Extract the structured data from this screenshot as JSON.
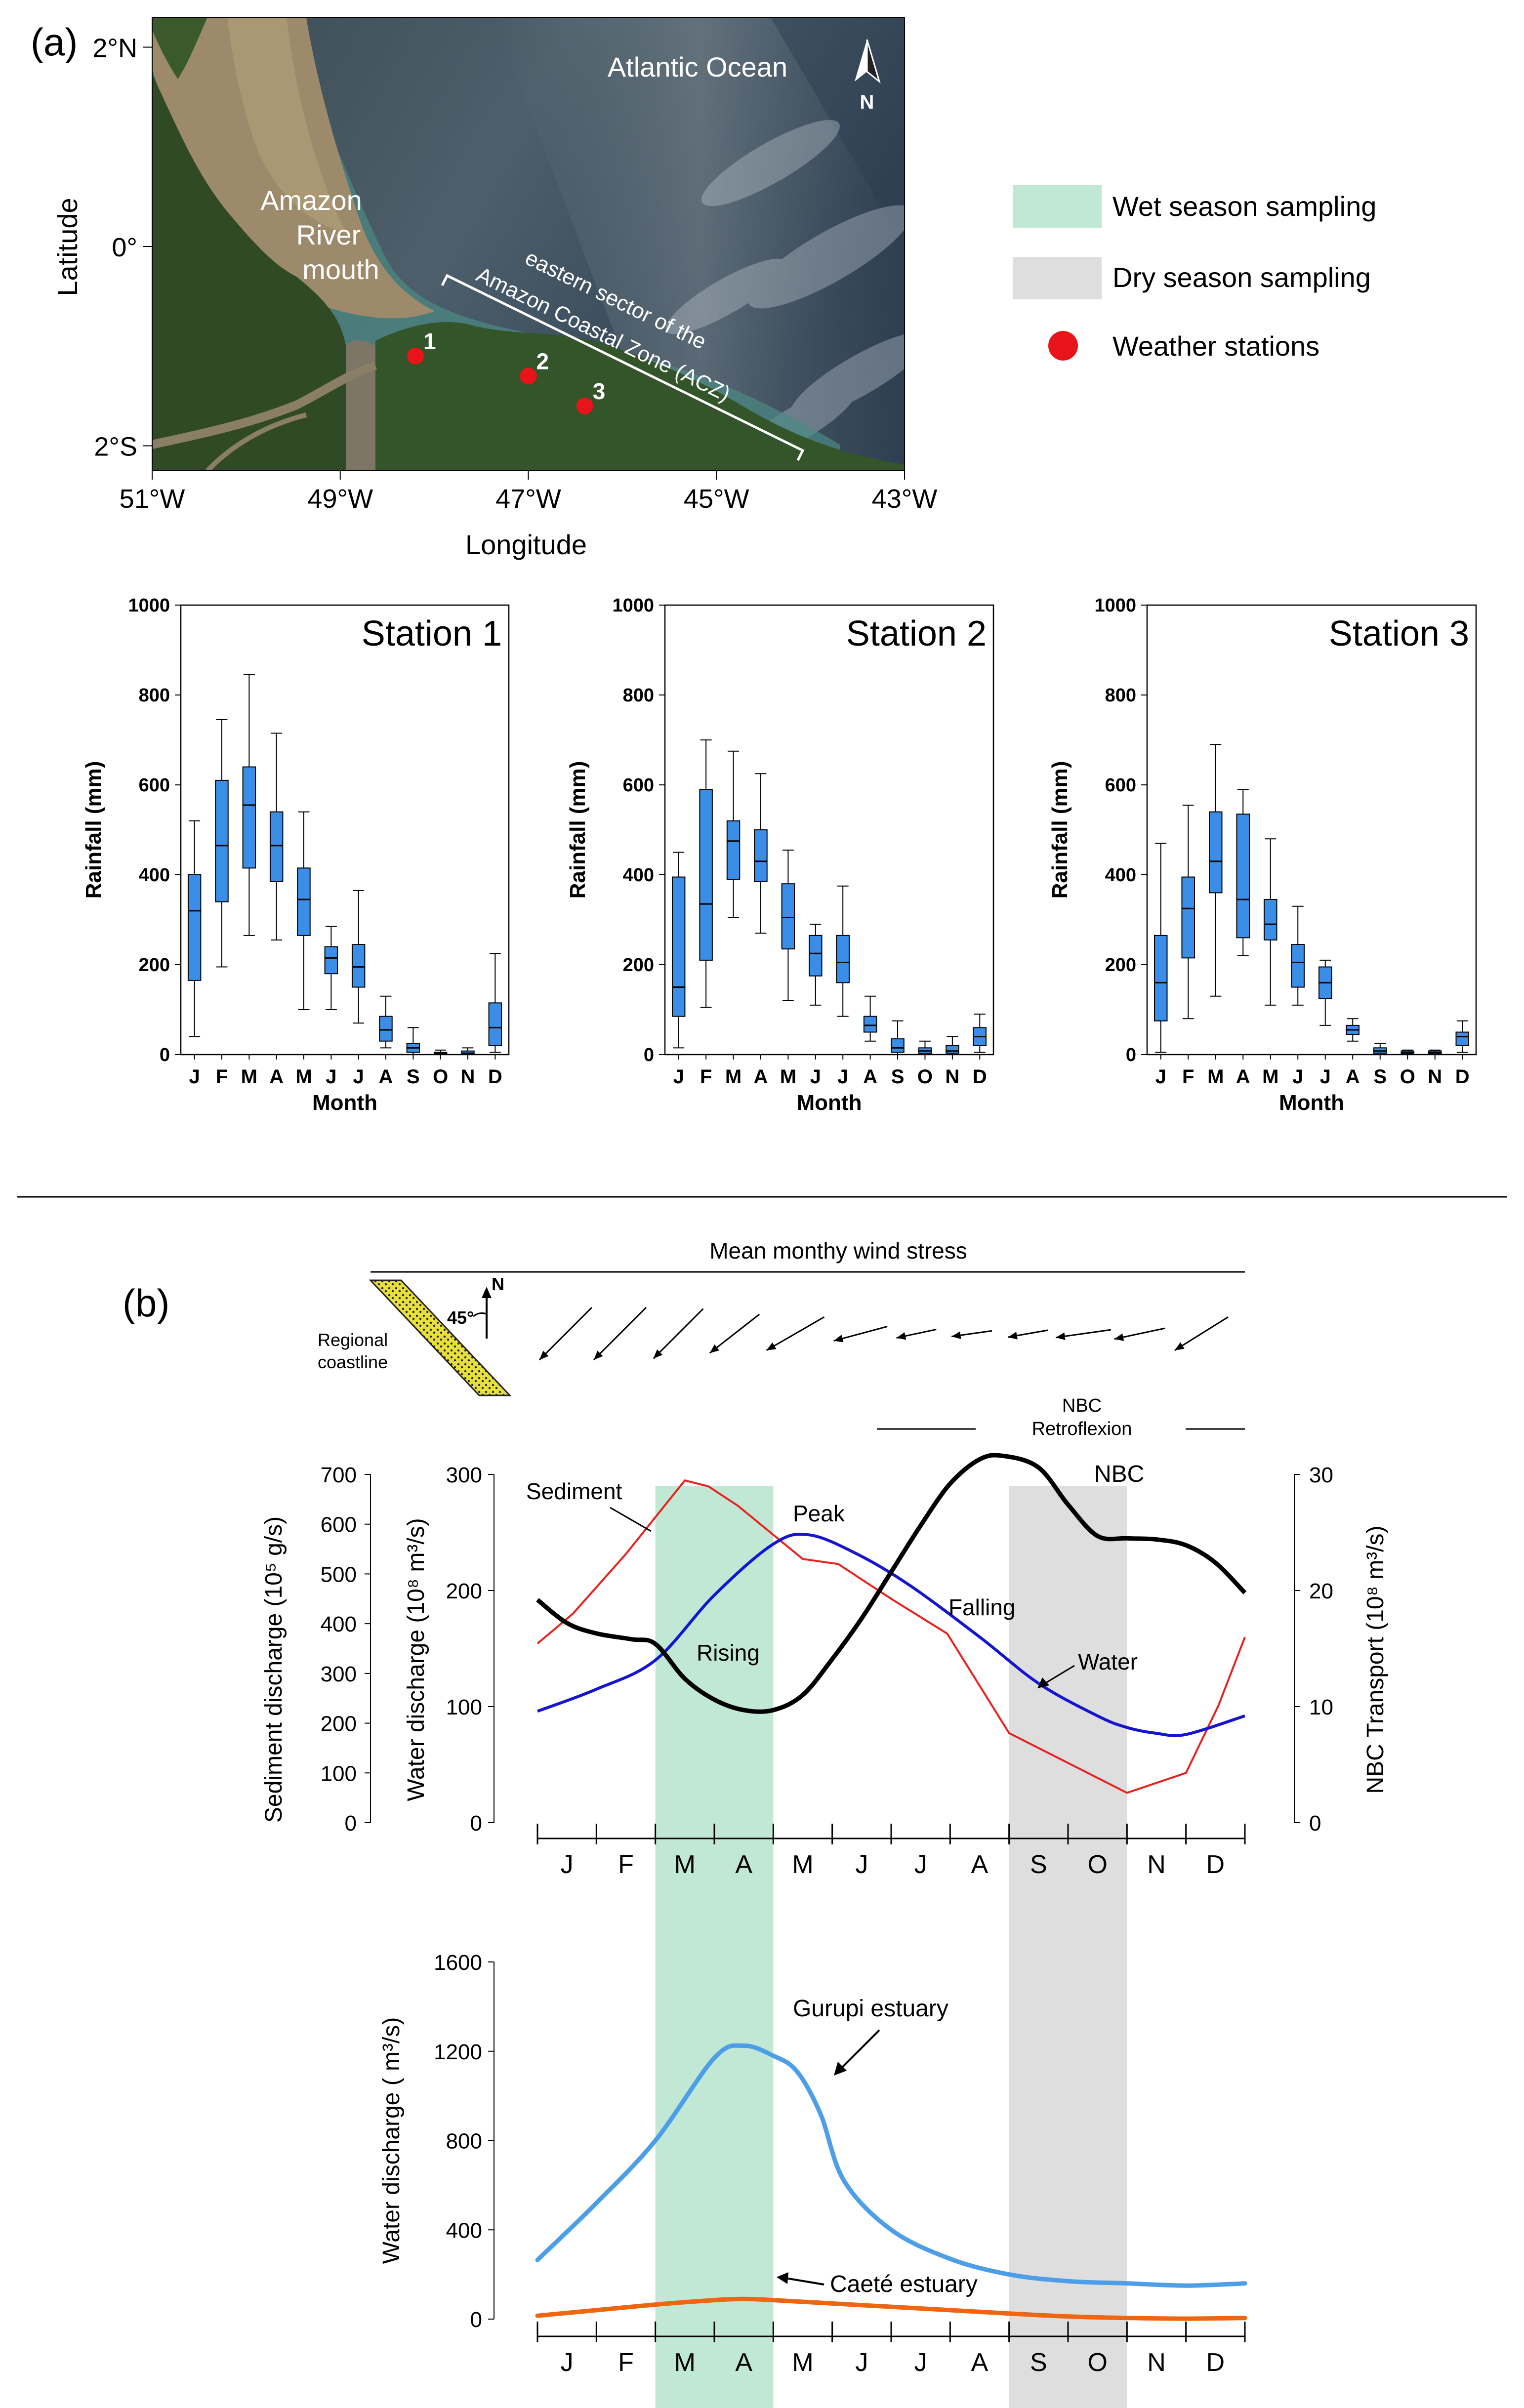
{
  "panel_a": {
    "label": "(a)",
    "map": {
      "ocean_label": "Atlantic Ocean",
      "river_label": [
        "Amazon",
        "River",
        "mouth"
      ],
      "zone_label": [
        "eastern sector of the",
        "Amazon Coastal Zone (ACZ)"
      ],
      "north_label": "N",
      "lat_ticks": [
        "2°N",
        "0°",
        "2°S"
      ],
      "lon_ticks": [
        "51°W",
        "49°W",
        "47°W",
        "45°W",
        "43°W"
      ],
      "xlabel": "Longitude",
      "ylabel": "Latitude",
      "stations": [
        {
          "id": "1",
          "lon": -48.2,
          "lat": -1.1
        },
        {
          "id": "2",
          "lon": -47.0,
          "lat": -1.3
        },
        {
          "id": "3",
          "lon": -46.4,
          "lat": -1.6
        }
      ]
    },
    "legend": [
      {
        "label": "Wet season sampling",
        "color": "#c0e8d4"
      },
      {
        "label": "Dry season sampling",
        "color": "#dedede"
      },
      {
        "label": "Weather stations",
        "color": "#e8141a"
      }
    ]
  },
  "panel_b": {
    "label": "(b)",
    "wind": {
      "title": "Mean monthy wind stress",
      "coast_label": [
        "Regional",
        "coastline"
      ],
      "angle_label": "45°",
      "north_label": "N",
      "directions_deg": [
        225,
        225,
        225,
        232,
        240,
        255,
        258,
        262,
        260,
        262,
        258,
        238
      ],
      "lengths": [
        1.0,
        1.0,
        0.95,
        0.85,
        0.9,
        0.75,
        0.55,
        0.55,
        0.55,
        0.75,
        0.7,
        0.85
      ]
    },
    "nbc_label": [
      "NBC",
      "Retroflexion"
    ],
    "colors": {
      "sediment": "#e8231f",
      "water": "#1515d0",
      "nbc": "#000000",
      "gurupi": "#4d9ee8",
      "caete": "#f0650f",
      "box": "#3b8ee8",
      "wet": "#c0e8d4",
      "dry": "#dedede"
    }
  },
  "chart_data": [
    {
      "type": "box",
      "title": "Station 1",
      "xlabel": "Month",
      "ylabel": "Rainfall (mm)",
      "ylim": [
        0,
        1000
      ],
      "yticks": [
        "0",
        "200",
        "400",
        "600",
        "800",
        "1000"
      ],
      "categories": [
        "J",
        "F",
        "M",
        "A",
        "M",
        "J",
        "J",
        "A",
        "S",
        "O",
        "N",
        "D"
      ],
      "boxes": [
        {
          "min": 40,
          "q1": 165,
          "median": 320,
          "q3": 400,
          "max": 520
        },
        {
          "min": 195,
          "q1": 340,
          "median": 465,
          "q3": 610,
          "max": 745
        },
        {
          "min": 265,
          "q1": 415,
          "median": 555,
          "q3": 640,
          "max": 845
        },
        {
          "min": 255,
          "q1": 385,
          "median": 465,
          "q3": 540,
          "max": 715
        },
        {
          "min": 100,
          "q1": 265,
          "median": 345,
          "q3": 415,
          "max": 540
        },
        {
          "min": 100,
          "q1": 180,
          "median": 215,
          "q3": 240,
          "max": 285
        },
        {
          "min": 70,
          "q1": 150,
          "median": 195,
          "q3": 245,
          "max": 365
        },
        {
          "min": 15,
          "q1": 30,
          "median": 55,
          "q3": 85,
          "max": 130
        },
        {
          "min": 0,
          "q1": 5,
          "median": 15,
          "q3": 25,
          "max": 60
        },
        {
          "min": 0,
          "q1": 0,
          "median": 2,
          "q3": 5,
          "max": 10
        },
        {
          "min": 0,
          "q1": 0,
          "median": 3,
          "q3": 8,
          "max": 15
        },
        {
          "min": 5,
          "q1": 20,
          "median": 60,
          "q3": 115,
          "max": 225
        }
      ]
    },
    {
      "type": "box",
      "title": "Station 2",
      "xlabel": "Month",
      "ylabel": "Rainfall (mm)",
      "ylim": [
        0,
        1000
      ],
      "yticks": [
        "0",
        "200",
        "400",
        "600",
        "800",
        "1000"
      ],
      "categories": [
        "J",
        "F",
        "M",
        "A",
        "M",
        "J",
        "J",
        "A",
        "S",
        "O",
        "N",
        "D"
      ],
      "boxes": [
        {
          "min": 15,
          "q1": 85,
          "median": 150,
          "q3": 395,
          "max": 450
        },
        {
          "min": 105,
          "q1": 210,
          "median": 335,
          "q3": 590,
          "max": 700
        },
        {
          "min": 305,
          "q1": 390,
          "median": 475,
          "q3": 520,
          "max": 675
        },
        {
          "min": 270,
          "q1": 385,
          "median": 430,
          "q3": 500,
          "max": 625
        },
        {
          "min": 120,
          "q1": 235,
          "median": 305,
          "q3": 380,
          "max": 455
        },
        {
          "min": 110,
          "q1": 175,
          "median": 225,
          "q3": 265,
          "max": 290
        },
        {
          "min": 85,
          "q1": 160,
          "median": 205,
          "q3": 265,
          "max": 375
        },
        {
          "min": 30,
          "q1": 50,
          "median": 65,
          "q3": 85,
          "max": 130
        },
        {
          "min": 0,
          "q1": 5,
          "median": 15,
          "q3": 35,
          "max": 75
        },
        {
          "min": 0,
          "q1": 2,
          "median": 8,
          "q3": 15,
          "max": 30
        },
        {
          "min": 0,
          "q1": 3,
          "median": 8,
          "q3": 20,
          "max": 40
        },
        {
          "min": 5,
          "q1": 20,
          "median": 40,
          "q3": 60,
          "max": 90
        }
      ]
    },
    {
      "type": "box",
      "title": "Station 3",
      "xlabel": "Month",
      "ylabel": "Rainfall (mm)",
      "ylim": [
        0,
        1000
      ],
      "yticks": [
        "0",
        "200",
        "400",
        "600",
        "800",
        "1000"
      ],
      "categories": [
        "J",
        "F",
        "M",
        "A",
        "M",
        "J",
        "J",
        "A",
        "S",
        "O",
        "N",
        "D"
      ],
      "boxes": [
        {
          "min": 5,
          "q1": 75,
          "median": 160,
          "q3": 265,
          "max": 470
        },
        {
          "min": 80,
          "q1": 215,
          "median": 325,
          "q3": 395,
          "max": 555
        },
        {
          "min": 130,
          "q1": 360,
          "median": 430,
          "q3": 540,
          "max": 690
        },
        {
          "min": 220,
          "q1": 260,
          "median": 345,
          "q3": 535,
          "max": 590
        },
        {
          "min": 110,
          "q1": 255,
          "median": 290,
          "q3": 345,
          "max": 480
        },
        {
          "min": 110,
          "q1": 150,
          "median": 205,
          "q3": 245,
          "max": 330
        },
        {
          "min": 65,
          "q1": 125,
          "median": 160,
          "q3": 195,
          "max": 210
        },
        {
          "min": 30,
          "q1": 45,
          "median": 55,
          "q3": 65,
          "max": 80
        },
        {
          "min": 0,
          "q1": 3,
          "median": 8,
          "q3": 15,
          "max": 25
        },
        {
          "min": 0,
          "q1": 1,
          "median": 4,
          "q3": 8,
          "max": 10
        },
        {
          "min": 0,
          "q1": 1,
          "median": 4,
          "q3": 8,
          "max": 10
        },
        {
          "min": 5,
          "q1": 20,
          "median": 40,
          "q3": 50,
          "max": 75
        }
      ]
    },
    {
      "type": "line",
      "title": "",
      "categories": [
        "J",
        "F",
        "M",
        "A",
        "M",
        "J",
        "J",
        "A",
        "S",
        "O",
        "N",
        "D"
      ],
      "y_left_sediment": {
        "label": "Sediment discharge (10⁵ g/s)",
        "ticks": [
          "0",
          "100",
          "200",
          "300",
          "400",
          "500",
          "600",
          "700"
        ],
        "ylim": [
          0,
          700
        ]
      },
      "y_left_water": {
        "label": "Water discharge (10⁸ m³/s)",
        "ticks": [
          "0",
          "100",
          "200",
          "300"
        ],
        "ylim": [
          0,
          300
        ]
      },
      "y_right": {
        "label": "NBC Transport (10⁸ m³/s)",
        "ticks": [
          "0",
          "10",
          "20",
          "30"
        ],
        "ylim": [
          0,
          30
        ]
      },
      "series": [
        {
          "name": "Sediment",
          "axis": "sediment",
          "x": [
            0,
            0.6,
            1.5,
            2.5,
            2.9,
            3.4,
            4.5,
            5.1,
            6.0,
            6.95,
            8.0,
            9.0,
            10.0,
            11.0,
            11.55,
            12.0
          ],
          "values": [
            360,
            420,
            540,
            688,
            676,
            637,
            530,
            520,
            450,
            380,
            180,
            120,
            60,
            100,
            235,
            373
          ]
        },
        {
          "name": "Water",
          "axis": "water",
          "x": [
            0,
            1.0,
            2.0,
            3.0,
            4.0,
            4.6,
            5.4,
            6.3,
            7.5,
            8.5,
            9.5,
            10.0,
            10.5,
            11.0,
            12.0
          ],
          "values": [
            96,
            115,
            140,
            196,
            240,
            248,
            232,
            205,
            160,
            120,
            92,
            82,
            77,
            76,
            92
          ]
        },
        {
          "name": "NBC",
          "axis": "right",
          "x": [
            0,
            0.5,
            1.0,
            1.6,
            2.0,
            2.5,
            3.0,
            3.5,
            4.0,
            4.5,
            5.0,
            5.5,
            6.0,
            6.5,
            7.0,
            7.5,
            7.9,
            8.5,
            9.0,
            9.5,
            10.0,
            10.5,
            11.0,
            11.5,
            12.0
          ],
          "values": [
            19.2,
            17.2,
            16.3,
            15.8,
            15.4,
            12.4,
            10.6,
            9.7,
            9.7,
            11.0,
            14.1,
            17.6,
            21.6,
            25.6,
            29.2,
            31.3,
            31.6,
            30.6,
            27.4,
            24.7,
            24.5,
            24.4,
            23.9,
            22.4,
            19.8
          ]
        }
      ],
      "annotations": [
        "Sediment",
        "Peak",
        "Rising",
        "Falling",
        "Water",
        "NBC"
      ],
      "wet_season": [
        2,
        4
      ],
      "dry_season": [
        8,
        10
      ]
    },
    {
      "type": "line",
      "title": "",
      "ylabel": "Water discharge ( m³/s)",
      "ylim": [
        0,
        1600
      ],
      "yticks": [
        "0",
        "400",
        "800",
        "1200",
        "1600"
      ],
      "categories": [
        "J",
        "F",
        "M",
        "A",
        "M",
        "J",
        "J",
        "A",
        "S",
        "O",
        "N",
        "D"
      ],
      "series": [
        {
          "name": "Gurupi estuary",
          "x": [
            0,
            1.0,
            2.0,
            3.0,
            3.5,
            4.0,
            4.4,
            4.8,
            5.2,
            6.0,
            7.0,
            8.0,
            9.0,
            10.0,
            11.0,
            12.0
          ],
          "values": [
            265,
            520,
            800,
            1170,
            1225,
            1180,
            1110,
            920,
            620,
            400,
            270,
            200,
            170,
            160,
            150,
            160
          ]
        },
        {
          "name": "Caeté estuary",
          "x": [
            0,
            1.0,
            2.0,
            3.0,
            3.5,
            4.0,
            5.0,
            6.0,
            7.0,
            8.0,
            9.0,
            10.0,
            11.0,
            12.0
          ],
          "values": [
            15,
            40,
            65,
            85,
            90,
            85,
            70,
            55,
            40,
            25,
            12,
            5,
            2,
            5
          ]
        }
      ],
      "annotations": [
        "Gurupi estuary",
        "Caeté estuary"
      ],
      "wet_season": [
        2,
        4
      ],
      "dry_season": [
        8,
        10
      ]
    }
  ]
}
